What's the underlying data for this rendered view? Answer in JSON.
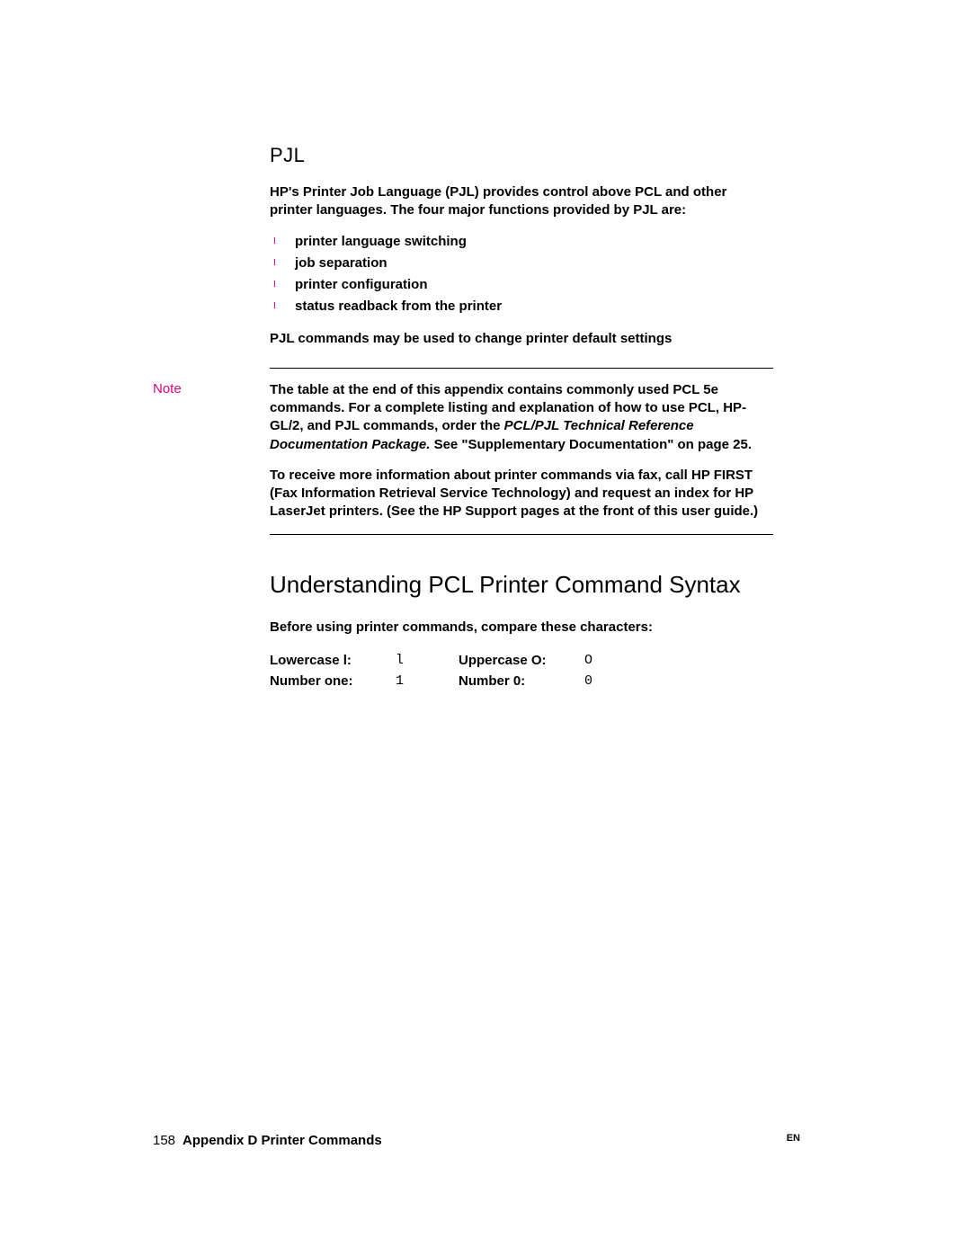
{
  "section": {
    "heading": "PJL",
    "intro": "HP's Printer Job Language (PJL) provides control above PCL and other printer languages. The four major functions provided by PJL are:",
    "bullets": [
      "printer language switching",
      "job separation",
      "printer configuration",
      "status readback from the printer"
    ],
    "after_bullets": "PJL commands may be used to change printer default settings"
  },
  "note": {
    "label": "Note",
    "p1_a": "The table at the end of this appendix contains commonly used PCL 5e commands. For a complete listing and explanation of how to use PCL, HP-GL/2, and PJL commands, order the ",
    "p1_ital": "PCL/PJL Technical Reference Documentation Package. ",
    "p1_b": "See \"Supplementary Documentation\" on page 25.",
    "p2": "To receive more information about printer commands via fax, call HP FIRST (Fax Information Retrieval Service Technology) and request an index for HP LaserJet printers. (See the HP Support pages at the front of this user guide.)"
  },
  "section2": {
    "heading": "Understanding PCL Printer Command Syntax",
    "intro": "Before using printer commands, compare these characters:"
  },
  "char_table": {
    "rows": [
      {
        "l1": "Lowercase l:",
        "v1": "l",
        "l2": "Uppercase O:",
        "v2": "O"
      },
      {
        "l1": "Number one:",
        "v1": "1",
        "l2": "Number 0:",
        "v2": "0"
      }
    ]
  },
  "footer": {
    "page_num": "158",
    "title": "Appendix D Printer Commands",
    "lang": "EN"
  },
  "colors": {
    "accent": "#e6007e",
    "text": "#000000",
    "background": "#ffffff"
  }
}
